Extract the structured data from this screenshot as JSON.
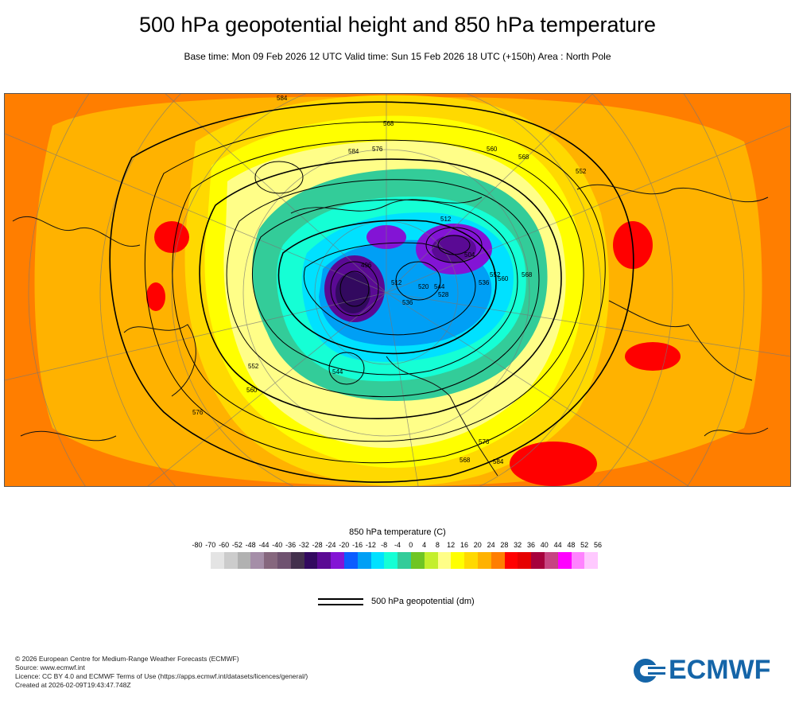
{
  "title": "500 hPa geopotential height and 850 hPa temperature",
  "subtitle": "Base time: Mon 09 Feb 2026 12 UTC Valid time: Sun 15 Feb 2026 18 UTC (+150h) Area : North Pole",
  "map": {
    "contour_labels": [
      "584",
      "568",
      "584",
      "576",
      "560",
      "568",
      "552",
      "512",
      "504",
      "496",
      "512",
      "520",
      "528",
      "536",
      "544",
      "552",
      "560",
      "568",
      "576",
      "584",
      "576",
      "568",
      "560",
      "552",
      "544",
      "536"
    ]
  },
  "legend": {
    "title": "850 hPa temperature (C)",
    "ticks": [
      "-80",
      "-70",
      "-60",
      "-52",
      "-48",
      "-44",
      "-40",
      "-36",
      "-32",
      "-28",
      "-24",
      "-20",
      "-16",
      "-12",
      "-8",
      "-4",
      "0",
      "4",
      "8",
      "12",
      "16",
      "20",
      "24",
      "28",
      "32",
      "36",
      "40",
      "44",
      "48",
      "52",
      "56"
    ],
    "colors": [
      "#e4e4e4",
      "#cccccc",
      "#b1b1b1",
      "#a58ea8",
      "#86677e",
      "#6f5270",
      "#43304d",
      "#32095f",
      "#5a0a94",
      "#8314d5",
      "#0b5cff",
      "#009ff5",
      "#00e1ff",
      "#15ffd5",
      "#33cc99",
      "#6fc524",
      "#c4ef2c",
      "#fffe88",
      "#ffff00",
      "#ffd900",
      "#ffb200",
      "#ff7e00",
      "#ff0000",
      "#e60000",
      "#a6003c",
      "#c74482",
      "#ff00ff",
      "#ff83ff",
      "#ffc9ff",
      "#e8cfea",
      "#e6e6e6"
    ],
    "geopotential_label": "500 hPa geopotential (dm)"
  },
  "footer": {
    "line1": "© 2026 European Centre for Medium-Range Weather Forecasts (ECMWF)",
    "line2": "Source: www.ecmwf.int",
    "line3": "Licence: CC BY 4.0 and ECMWF Terms of Use (https://apps.ecmwf.int/datasets/licences/general/)",
    "line4": "Created at 2026-02-09T19:43:47.748Z"
  },
  "logo": {
    "text": "ECMWF",
    "color": "#1565a8"
  }
}
